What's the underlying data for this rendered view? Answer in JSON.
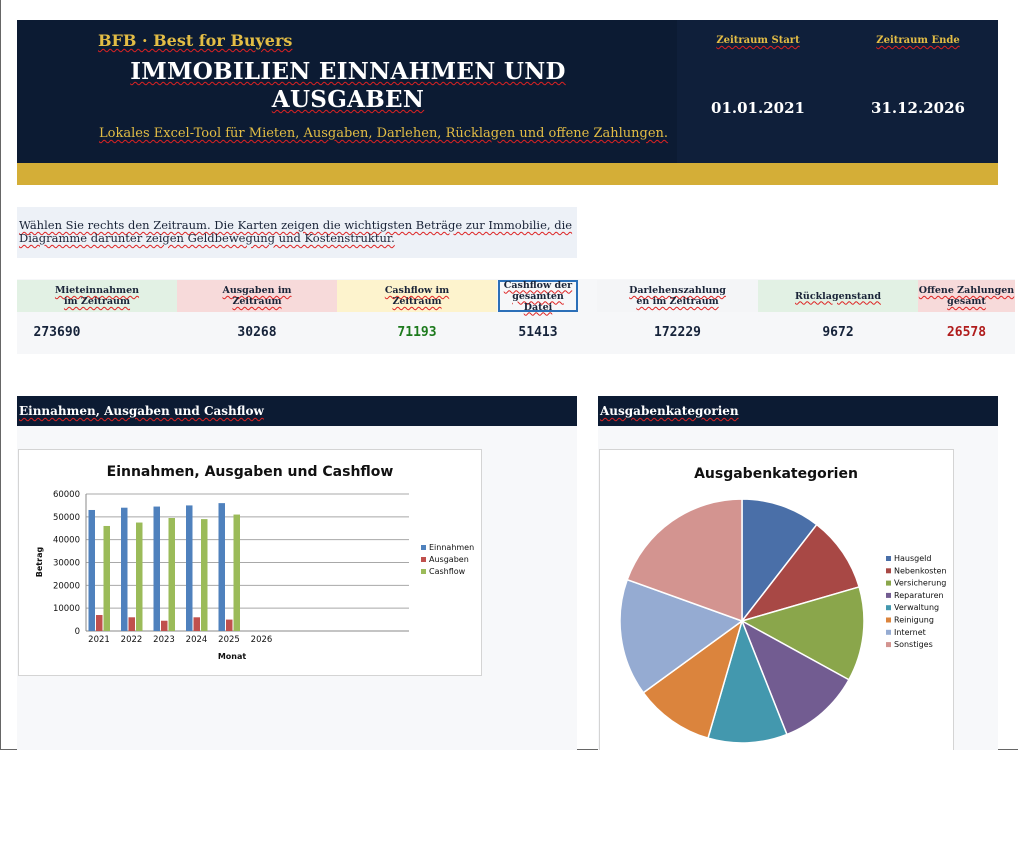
{
  "header": {
    "brand": "BFB · Best for Buyers",
    "title": "IMMOBILIEN EINNAHMEN UND AUSGABEN",
    "subtitle": "Lokales Excel-Tool für Mieten, Ausgaben, Darlehen, Rücklagen und offene Zahlungen.",
    "period_start_label": "Zeitraum Start",
    "period_end_label": "Zeitraum Ende",
    "period_start": "01.01.2021",
    "period_end": "31.12.2026"
  },
  "intro": "Wählen Sie rechts den Zeitraum. Die Karten zeigen die wichtigsten Beträge zur Immobilie, die Diagramme darunter zeigen Geldbewegung und Kostenstruktur.",
  "kpis": [
    {
      "label": "Mieteinnahmen im Zeitraum",
      "value": "273690",
      "bg": "#e2f1e4",
      "color": "#16233a"
    },
    {
      "label": "Ausgaben im Zeitraum",
      "value": "30268",
      "bg": "#f7dada",
      "color": "#16233a"
    },
    {
      "label": "Cashflow im Zeitraum",
      "value": "71193",
      "bg": "#fdf3cd",
      "color": "#1d7a1d"
    },
    {
      "label": "Cashflow der gesamten Datei",
      "value": "51413",
      "bg": "#f6f7f9",
      "color": "#16233a"
    },
    {
      "label": "Darlehenszahlung en im Zeitraum",
      "value": "172229",
      "bg": "#f4f5f7",
      "color": "#16233a"
    },
    {
      "label": "Rücklagenstand",
      "value": "9672",
      "bg": "#e2f1e4",
      "color": "#16233a"
    },
    {
      "label": "Offene Zahlungen gesamt",
      "value": "26578",
      "bg": "#f7dada",
      "color": "#b01c1c"
    }
  ],
  "sections": {
    "left": "Einnahmen, Ausgaben und Cashflow",
    "right": "Ausgabenkategorien"
  },
  "chart_data": [
    {
      "type": "bar",
      "title": "Einnahmen, Ausgaben und Cashflow",
      "xlabel": "Monat",
      "ylabel": "Betrag",
      "categories": [
        "2021",
        "2022",
        "2023",
        "2024",
        "2025",
        "2026"
      ],
      "ylim": [
        0,
        60000
      ],
      "yticks": [
        0,
        10000,
        20000,
        30000,
        40000,
        50000,
        60000
      ],
      "grid": true,
      "legend": "right",
      "series": [
        {
          "name": "Einnahmen",
          "color": "#4f81bd",
          "values": [
            53000,
            54000,
            54500,
            55000,
            56000,
            0
          ]
        },
        {
          "name": "Ausgaben",
          "color": "#c0504d",
          "values": [
            7000,
            6000,
            4500,
            6000,
            5000,
            0
          ]
        },
        {
          "name": "Cashflow",
          "color": "#9bbb59",
          "values": [
            46000,
            47500,
            49500,
            49000,
            51000,
            0
          ]
        }
      ]
    },
    {
      "type": "pie",
      "title": "Ausgabenkategorien",
      "legend": "right",
      "slices": [
        {
          "name": "Hausgeld",
          "value": 10.5,
          "color": "#4a6fa8"
        },
        {
          "name": "Nebenkosten",
          "value": 10.0,
          "color": "#a84845"
        },
        {
          "name": "Versicherung",
          "value": 12.5,
          "color": "#8aa64b"
        },
        {
          "name": "Reparaturen",
          "value": 11.0,
          "color": "#725c91"
        },
        {
          "name": "Verwaltung",
          "value": 10.5,
          "color": "#4398ae"
        },
        {
          "name": "Reinigung",
          "value": 10.5,
          "color": "#db843d"
        },
        {
          "name": "Internet",
          "value": 15.5,
          "color": "#95abd2"
        },
        {
          "name": "Sonstiges",
          "value": 19.5,
          "color": "#d39490"
        }
      ]
    }
  ]
}
